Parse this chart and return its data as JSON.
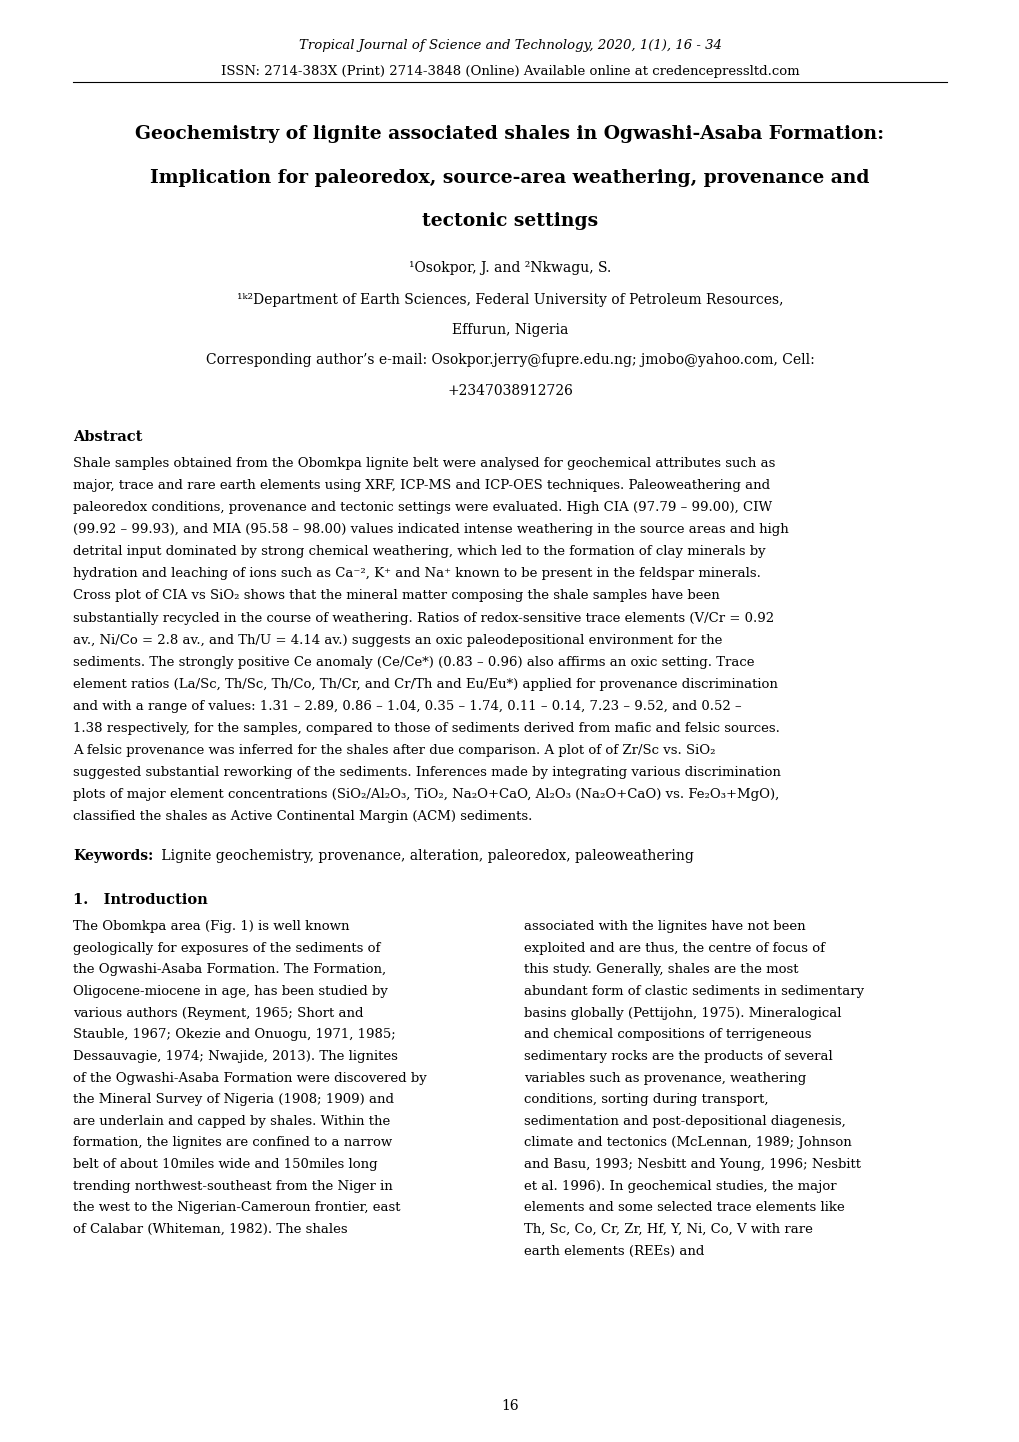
{
  "header_line1_italic": "Tropical Journal of Science and Technology",
  "header_line1_rest": ", 2020, 1(1), 16 - 34",
  "header_line2": "ISSN: 2714-383X (Print) 2714-3848 (Online) Available online at credencepressltd.com",
  "title_line1": "Geochemistry of lignite associated shales in Ogwashi-Asaba Formation:",
  "title_line2": "Implication for paleoredox, source-area weathering, provenance and",
  "title_line3": "tectonic settings",
  "authors": "¹Osokpor, J. and ²Nkwagu, S.",
  "affiliation": "¹ᵏ²Department of Earth Sciences, Federal University of Petroleum Resources,",
  "location": "Effurun, Nigeria",
  "corresponding": "Corresponding author’s e-mail: Osokpor.jerry@fupre.edu.ng; jmobo@yahoo.com, Cell:",
  "phone": "+2347038912726",
  "abstract_title": "Abstract",
  "abstract_text": "Shale samples obtained from the Obomkpa lignite belt were analysed for geochemical attributes such as major, trace and rare earth elements using XRF, ICP-MS and ICP-OES techniques. Paleoweathering and paleoredox conditions, provenance and tectonic settings were evaluated. High CIA (97.79 – 99.00), CIW (99.92 – 99.93), and MIA (95.58 – 98.00) values indicated intense weathering in the source areas and high detrital input dominated by strong chemical weathering, which led to the formation of clay minerals by hydration and leaching of ions such as Ca⁻², K⁺ and Na⁺ known to be present in the feldspar minerals. Cross plot of CIA vs SiO₂ shows that the mineral matter composing the shale samples have been substantially recycled in the course of weathering. Ratios of redox-sensitive trace elements (V/Cr = 0.92 av., Ni/Co = 2.8 av., and Th/U = 4.14 av.) suggests an oxic paleodepositional environment for the sediments. The strongly positive Ce anomaly (Ce/Ce*) (0.83 – 0.96) also affirms an oxic setting. Trace element ratios (La/Sc, Th/Sc, Th/Co, Th/Cr, and Cr/Th and Eu/Eu*) applied for provenance discrimination and with a range of values: 1.31 – 2.89, 0.86 – 1.04, 0.35 – 1.74, 0.11 – 0.14, 7.23 – 9.52, and 0.52 – 1.38 respectively, for the samples, compared to those of sediments derived from mafic and felsic sources. A felsic provenance was inferred for the shales after due comparison. A plot of of Zr/Sc vs. SiO₂ suggested substantial reworking of the sediments. Inferences made by integrating various discrimination plots of major element concentrations (SiO₂/Al₂O₃, TiO₂, Na₂O+CaO, Al₂O₃ (Na₂O+CaO) vs. Fe₂O₃+MgO), classified the shales as Active Continental Margin (ACM) sediments.",
  "keywords_bold": "Keywords:",
  "keywords_text": " Lignite geochemistry, provenance, alteration, paleoredox, paleoweathering",
  "section1_title": "1.   Introduction",
  "col1_text": "The Obomkpa area (Fig. 1) is well known geologically for exposures of the sediments of the Ogwashi-Asaba Formation. The Formation, Oligocene-miocene in age, has been studied by various authors (Reyment, 1965; Short and Stauble, 1967; Okezie and Onuogu, 1971, 1985; Dessauvagie, 1974; Nwajide, 2013). The lignites of the Ogwashi-Asaba Formation were discovered by the Mineral Survey of Nigeria (1908; 1909) and are underlain and capped by shales. Within the formation, the lignites are confined to a narrow belt of about 10miles wide and 150miles long trending northwest-southeast from the Niger in the west to the Nigerian-Cameroun frontier, east of Calabar (Whiteman, 1982). The shales",
  "col2_text": "associated with the lignites have not been exploited and are thus, the centre of focus of this study.\n        Generally, shales are the most abundant form of clastic sediments in sedimentary basins globally (Pettijohn, 1975). Mineralogical and chemical compositions of terrigeneous sedimentary rocks are the products of several variables such as provenance, weathering conditions, sorting during transport, sedimentation and post-depositional diagenesis, climate and tectonics (McLennan, 1989; Johnson and Basu, 1993; Nesbitt and Young, 1996; Nesbitt et al. 1996). In geochemical studies, the major elements and some selected trace elements like Th, Sc, Co, Cr, Zr, Hf, Y, Ni, Co, V with rare earth elements (REEs) and",
  "page_number": "16",
  "bg_color": "#ffffff",
  "text_color": "#000000",
  "ml": 0.072,
  "mr": 0.928
}
